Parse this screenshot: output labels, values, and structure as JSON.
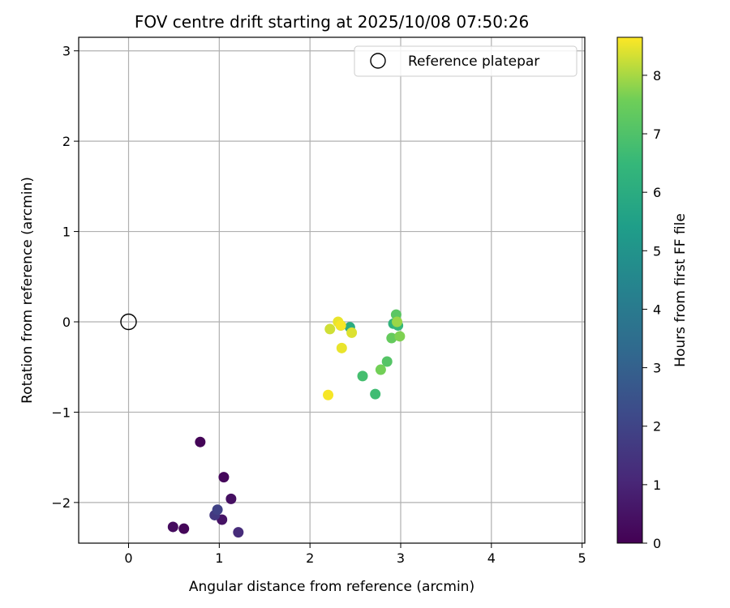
{
  "chart_data": {
    "type": "scatter",
    "title": "FOV centre drift starting at 2025/10/08 07:50:26",
    "xlabel": "Angular distance from reference (arcmin)",
    "ylabel": "Rotation from reference (arcmin)",
    "xlim": [
      -0.55,
      5.03
    ],
    "ylim": [
      -2.45,
      3.15
    ],
    "xticks": [
      0,
      1,
      2,
      3,
      4,
      5
    ],
    "xtick_labels": [
      "0",
      "1",
      "2",
      "3",
      "4",
      "5"
    ],
    "yticks": [
      -2,
      -1,
      0,
      1,
      2,
      3
    ],
    "ytick_labels": [
      "−2",
      "−1",
      "0",
      "1",
      "2",
      "3"
    ],
    "grid": true,
    "legend": {
      "position": "upper right",
      "entries": [
        "Reference platepar"
      ]
    },
    "reference_point": {
      "x": 0,
      "y": 0,
      "label": "Reference platepar"
    },
    "colorbar": {
      "label": "Hours from first FF file",
      "colormap": "viridis",
      "range": [
        0,
        8.65
      ],
      "ticks": [
        0,
        1,
        2,
        3,
        4,
        5,
        6,
        7,
        8
      ],
      "tick_labels": [
        "0",
        "1",
        "2",
        "3",
        "4",
        "5",
        "6",
        "7",
        "8"
      ]
    },
    "points": [
      {
        "x": 0.79,
        "y": -1.33,
        "hours": 0.1
      },
      {
        "x": 1.05,
        "y": -1.72,
        "hours": 0.2
      },
      {
        "x": 1.13,
        "y": -1.96,
        "hours": 0.4
      },
      {
        "x": 0.49,
        "y": -2.27,
        "hours": 0.3
      },
      {
        "x": 0.61,
        "y": -2.29,
        "hours": 0.15
      },
      {
        "x": 1.03,
        "y": -2.19,
        "hours": 0.5
      },
      {
        "x": 0.95,
        "y": -2.14,
        "hours": 1.6
      },
      {
        "x": 0.98,
        "y": -2.08,
        "hours": 1.9
      },
      {
        "x": 1.21,
        "y": -2.33,
        "hours": 1.2
      },
      {
        "x": 2.34,
        "y": -0.04,
        "hours": 5.8
      },
      {
        "x": 2.44,
        "y": -0.06,
        "hours": 6.0
      },
      {
        "x": 2.92,
        "y": -0.02,
        "hours": 6.3
      },
      {
        "x": 2.97,
        "y": -0.04,
        "hours": 6.5
      },
      {
        "x": 2.58,
        "y": -0.6,
        "hours": 6.8
      },
      {
        "x": 2.72,
        "y": -0.8,
        "hours": 6.7
      },
      {
        "x": 2.85,
        "y": -0.44,
        "hours": 7.1
      },
      {
        "x": 2.78,
        "y": -0.53,
        "hours": 7.6
      },
      {
        "x": 2.95,
        "y": 0.08,
        "hours": 7.2
      },
      {
        "x": 2.9,
        "y": -0.18,
        "hours": 7.4
      },
      {
        "x": 2.99,
        "y": -0.16,
        "hours": 7.7
      },
      {
        "x": 2.96,
        "y": 0.0,
        "hours": 7.9
      },
      {
        "x": 2.22,
        "y": -0.08,
        "hours": 8.3
      },
      {
        "x": 2.31,
        "y": 0.0,
        "hours": 8.5
      },
      {
        "x": 2.34,
        "y": -0.04,
        "hours": 8.6
      },
      {
        "x": 2.46,
        "y": -0.12,
        "hours": 8.4
      },
      {
        "x": 2.35,
        "y": -0.29,
        "hours": 8.5
      },
      {
        "x": 2.2,
        "y": -0.81,
        "hours": 8.6
      }
    ]
  }
}
